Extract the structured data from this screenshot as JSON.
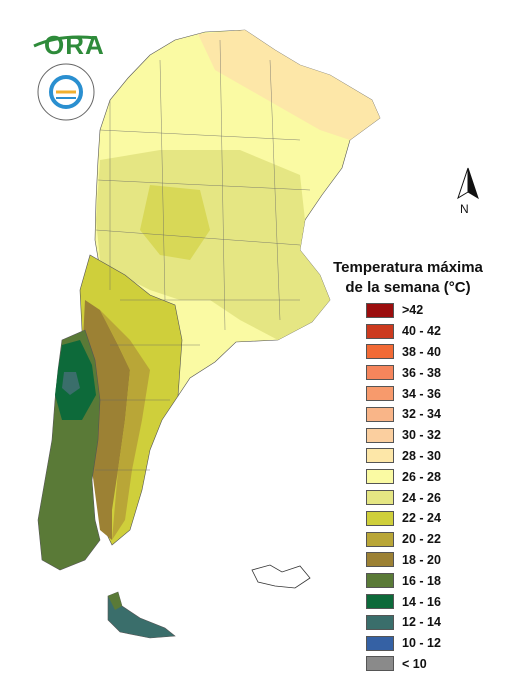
{
  "logo": {
    "text": "ORA"
  },
  "compass": {
    "label": "N"
  },
  "legend": {
    "title_line1": "Temperatura máxima",
    "title_line2": "de la semana (°C)",
    "items": [
      {
        "label": ">42",
        "color": "#9b0d0d"
      },
      {
        "label": "40 - 42",
        "color": "#cc3a1e"
      },
      {
        "label": "38 - 40",
        "color": "#f26a35"
      },
      {
        "label": "36 - 38",
        "color": "#f5855c"
      },
      {
        "label": "34 - 36",
        "color": "#f79a6c"
      },
      {
        "label": "32 - 34",
        "color": "#f9b588"
      },
      {
        "label": "30 - 32",
        "color": "#fbcf9f"
      },
      {
        "label": "28 - 30",
        "color": "#fde7a8"
      },
      {
        "label": "26 - 28",
        "color": "#fafaa3"
      },
      {
        "label": "24 - 26",
        "color": "#e5e683"
      },
      {
        "label": "22 - 24",
        "color": "#cfcf3b"
      },
      {
        "label": "20 - 22",
        "color": "#b9a637"
      },
      {
        "label": "18 - 20",
        "color": "#9c8134"
      },
      {
        "label": "16 - 18",
        "color": "#5a7a37"
      },
      {
        "label": "14 - 16",
        "color": "#0d6a3a"
      },
      {
        "label": "12 - 14",
        "color": "#3a6e6b"
      },
      {
        "label": "10 - 12",
        "color": "#3561a4"
      },
      {
        "label": "< 10",
        "color": "#8a8a8a"
      }
    ]
  }
}
